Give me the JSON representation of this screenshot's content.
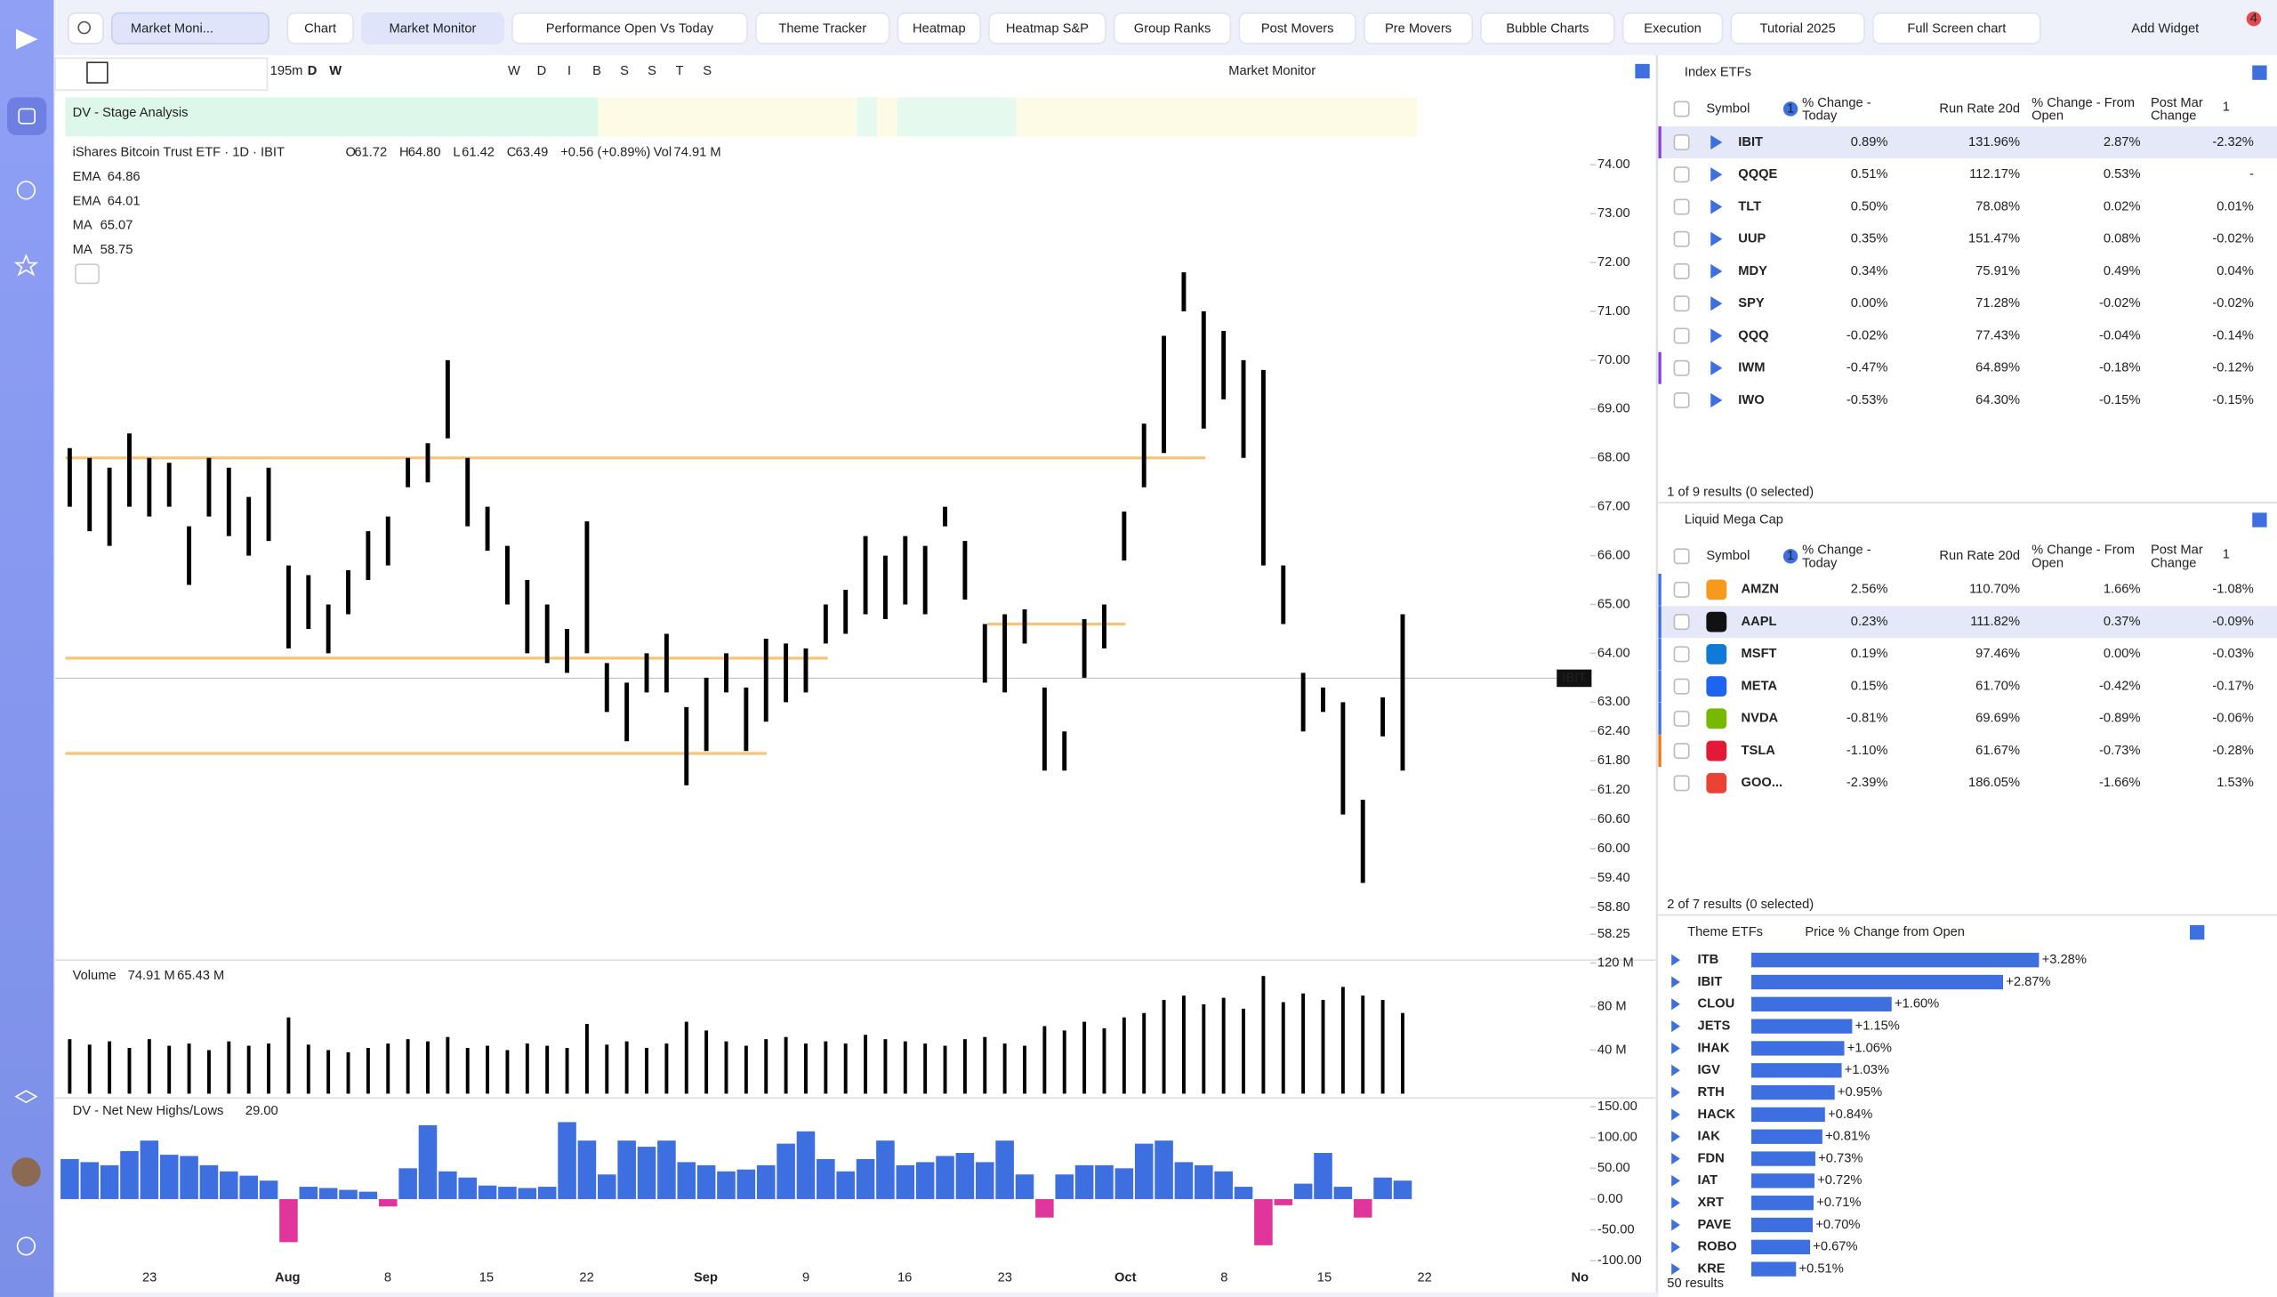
{
  "topbar": {
    "workspace": "Market Moni...",
    "tabs": [
      "Chart",
      "Market Monitor",
      "Performance Open Vs Today",
      "Theme Tracker",
      "Heatmap",
      "Heatmap S&P",
      "Group Ranks",
      "Post Movers",
      "Pre Movers",
      "Bubble Charts",
      "Execution",
      "Tutorial 2025",
      "Full Screen chart"
    ],
    "active_tab": 1,
    "add_widget": "Add Widget",
    "notifications": "4"
  },
  "chart_toolbar": {
    "interval": "195m",
    "period_buttons": [
      "D",
      "W"
    ],
    "tool_letters": [
      "W",
      "D",
      "I",
      "B",
      "S",
      "S",
      "T",
      "S"
    ],
    "layout_name": "Market Monitor"
  },
  "chart": {
    "indicator_strip": "DV - Stage Analysis",
    "title": "iShares Bitcoin Trust ETF · 1D · IBIT",
    "ohlc": [
      {
        "label": "O",
        "value": "61.72"
      },
      {
        "label": "H",
        "value": "64.80"
      },
      {
        "label": "L",
        "value": "61.42"
      },
      {
        "label": "C",
        "value": "63.49"
      }
    ],
    "change": "+0.56 (+0.89%)",
    "volume_label": "Vol",
    "volume_value": "74.91 M",
    "studies": [
      {
        "name": "EMA",
        "value": "64.86"
      },
      {
        "name": "EMA",
        "value": "64.01"
      },
      {
        "name": "MA",
        "value": "65.07"
      },
      {
        "name": "MA",
        "value": "58.75"
      }
    ],
    "last_label": "IBIT",
    "price": {
      "type": "ohlc-bar",
      "ylim": [
        57.9,
        74.4
      ],
      "yticks": [
        {
          "value": 74,
          "label": "74.00"
        },
        {
          "value": 73,
          "label": "73.00"
        },
        {
          "value": 72,
          "label": "72.00"
        },
        {
          "value": 71,
          "label": "71.00"
        },
        {
          "value": 70,
          "label": "70.00"
        },
        {
          "value": 69,
          "label": "69.00"
        },
        {
          "value": 68,
          "label": "68.00"
        },
        {
          "value": 67,
          "label": "67.00"
        },
        {
          "value": 66,
          "label": "66.00"
        },
        {
          "value": 65,
          "label": "65.00"
        },
        {
          "value": 64,
          "label": "64.00"
        },
        {
          "value": 63,
          "label": "63.00"
        },
        {
          "value": 62.4,
          "label": "62.40"
        },
        {
          "value": 61.8,
          "label": "61.80"
        },
        {
          "value": 61.2,
          "label": "61.20"
        },
        {
          "value": 60.6,
          "label": "60.60"
        },
        {
          "value": 60,
          "label": "60.00"
        },
        {
          "value": 59.4,
          "label": "59.40"
        },
        {
          "value": 58.8,
          "label": "58.80"
        },
        {
          "value": 58.25,
          "label": "58.25"
        }
      ],
      "high": [
        68.2,
        68.0,
        67.8,
        68.5,
        68.0,
        67.9,
        66.6,
        68.0,
        67.8,
        67.2,
        67.8,
        65.8,
        65.6,
        65.0,
        65.7,
        66.5,
        66.8,
        68.0,
        68.3,
        70.0,
        68.0,
        67.0,
        66.2,
        65.5,
        65.0,
        64.5,
        66.7,
        63.8,
        63.4,
        64.0,
        64.4,
        62.9,
        63.5,
        64.0,
        63.3,
        64.3,
        64.2,
        64.1,
        65.0,
        65.3,
        66.4,
        66.0,
        66.4,
        66.2,
        67.0,
        66.3,
        64.6,
        64.8,
        64.9,
        63.3,
        62.4,
        64.7,
        65.0,
        66.9,
        68.7,
        70.5,
        71.8,
        71.0,
        70.6,
        70.0,
        69.8,
        65.8,
        63.6,
        63.3,
        63.0,
        61.0,
        63.1,
        64.8
      ],
      "low": [
        67.0,
        66.5,
        66.2,
        67.0,
        66.8,
        67.0,
        65.4,
        66.8,
        66.4,
        66.0,
        66.3,
        64.1,
        64.5,
        64.0,
        64.8,
        65.5,
        65.8,
        67.4,
        67.5,
        68.4,
        66.6,
        66.1,
        65.0,
        64.0,
        63.8,
        63.6,
        64.0,
        62.8,
        62.2,
        63.2,
        63.2,
        61.3,
        62.0,
        63.2,
        62.0,
        62.6,
        63.0,
        63.2,
        64.2,
        64.4,
        64.8,
        64.7,
        65.0,
        64.8,
        66.6,
        65.1,
        63.4,
        63.2,
        64.2,
        61.6,
        61.6,
        63.5,
        64.1,
        65.9,
        67.4,
        68.1,
        71.0,
        68.6,
        69.2,
        68.0,
        65.8,
        64.6,
        62.4,
        62.8,
        60.7,
        59.3,
        62.3,
        61.6
      ],
      "levels": [
        68.0,
        63.9,
        61.95,
        64.6
      ],
      "level_color": "#f7c47a"
    },
    "volume": {
      "type": "bar",
      "title": "Volume",
      "value1": "74.91 M",
      "value2": "65.43 M",
      "ylim": [
        0,
        120
      ],
      "yticks": [
        {
          "value": 120,
          "label": "120 M"
        },
        {
          "value": 80,
          "label": "80 M"
        },
        {
          "value": 40,
          "label": "40 M"
        }
      ],
      "color": "#000000",
      "values": [
        50,
        45,
        48,
        42,
        50,
        44,
        46,
        40,
        48,
        44,
        46,
        70,
        45,
        40,
        38,
        42,
        46,
        50,
        48,
        52,
        42,
        44,
        40,
        46,
        44,
        42,
        64,
        45,
        48,
        42,
        46,
        66,
        58,
        48,
        44,
        50,
        52,
        46,
        48,
        46,
        54,
        50,
        48,
        46,
        44,
        50,
        52,
        46,
        44,
        62,
        58,
        66,
        60,
        70,
        74,
        86,
        90,
        82,
        88,
        78,
        108,
        84,
        92,
        86,
        98,
        90,
        86,
        74
      ]
    },
    "nnhl": {
      "type": "bar",
      "title": "DV - Net New Highs/Lows",
      "current": "29.00",
      "ylim": [
        -100,
        150
      ],
      "yticks": [
        {
          "value": 150,
          "label": "150.00"
        },
        {
          "value": 100,
          "label": "100.00"
        },
        {
          "value": 50,
          "label": "50.00"
        },
        {
          "value": 0,
          "label": "0.00"
        },
        {
          "value": -50,
          "label": "-50.00"
        },
        {
          "value": -100,
          "label": "-100.00"
        }
      ],
      "color": "#3d6fe0",
      "negative_color": "#e0359a",
      "values": [
        65,
        60,
        55,
        78,
        95,
        72,
        70,
        55,
        45,
        38,
        30,
        -70,
        20,
        18,
        15,
        12,
        -12,
        50,
        120,
        45,
        35,
        22,
        20,
        18,
        20,
        125,
        95,
        40,
        95,
        85,
        95,
        60,
        55,
        45,
        48,
        55,
        90,
        110,
        65,
        45,
        65,
        95,
        55,
        60,
        70,
        75,
        60,
        95,
        40,
        -30,
        40,
        55,
        55,
        50,
        90,
        95,
        60,
        55,
        45,
        20,
        -75,
        -10,
        25,
        75,
        20,
        -30,
        35,
        30
      ]
    },
    "x_labels": [
      "23",
      "Aug",
      "8",
      "15",
      "22",
      "Sep",
      "9",
      "16",
      "23",
      "Oct",
      "8",
      "15",
      "22",
      "No"
    ]
  },
  "index_etfs": {
    "title": "Index ETFs",
    "columns": {
      "symbol": "Symbol",
      "sort_badge": "1",
      "today": [
        "% Change -",
        "Today"
      ],
      "run_rate": "Run Rate 20d",
      "from_open": [
        "% Change - From",
        "Open"
      ],
      "post_mar": [
        "Post Mar",
        "Change"
      ],
      "post_badge": "1"
    },
    "rows": [
      [
        "IBIT",
        "0.89%",
        "131.96%",
        "2.87%",
        "-2.32%"
      ],
      [
        "QQQE",
        "0.51%",
        "112.17%",
        "0.53%",
        "-"
      ],
      [
        "TLT",
        "0.50%",
        "78.08%",
        "0.02%",
        "0.01%"
      ],
      [
        "UUP",
        "0.35%",
        "151.47%",
        "0.08%",
        "-0.02%"
      ],
      [
        "MDY",
        "0.34%",
        "75.91%",
        "0.49%",
        "0.04%"
      ],
      [
        "SPY",
        "0.00%",
        "71.28%",
        "-0.02%",
        "-0.02%"
      ],
      [
        "QQQ",
        "-0.02%",
        "77.43%",
        "-0.04%",
        "-0.14%"
      ],
      [
        "IWM",
        "-0.47%",
        "64.89%",
        "-0.18%",
        "-0.12%"
      ],
      [
        "IWO",
        "-0.53%",
        "64.30%",
        "-0.15%",
        "-0.15%"
      ]
    ],
    "footer": "1 of 9 results (0 selected)"
  },
  "mega_cap": {
    "title": "Liquid Mega Cap",
    "columns": {
      "symbol": "Symbol",
      "sort_badge": "1",
      "today": [
        "% Change -",
        "Today"
      ],
      "run_rate": "Run Rate 20d",
      "from_open": [
        "% Change - From",
        "Open"
      ],
      "post_mar": [
        "Post Mar",
        "Change"
      ],
      "post_badge": "1"
    },
    "rows": [
      [
        "AMZN",
        "2.56%",
        "110.70%",
        "1.66%",
        "-1.08%"
      ],
      [
        "AAPL",
        "0.23%",
        "111.82%",
        "0.37%",
        "-0.09%"
      ],
      [
        "MSFT",
        "0.19%",
        "97.46%",
        "0.00%",
        "-0.03%"
      ],
      [
        "META",
        "0.15%",
        "61.70%",
        "-0.42%",
        "-0.17%"
      ],
      [
        "NVDA",
        "-0.81%",
        "69.69%",
        "-0.89%",
        "-0.06%"
      ],
      [
        "TSLA",
        "-1.10%",
        "61.67%",
        "-0.73%",
        "-0.28%"
      ],
      [
        "GOO...",
        "-2.39%",
        "186.05%",
        "-1.66%",
        "1.53%"
      ]
    ],
    "footer": "2 of 7 results (0 selected)"
  },
  "theme_etfs": {
    "title": "Theme ETFs",
    "metric": "Price % Change from Open",
    "type": "bar",
    "color": "#3d6fe0",
    "categories": [
      "ITB",
      "IBIT",
      "CLOU",
      "JETS",
      "IHAK",
      "IGV",
      "RTH",
      "HACK",
      "IAK",
      "FDN",
      "IAT",
      "XRT",
      "PAVE",
      "ROBO",
      "KRE"
    ],
    "values": [
      3.28,
      2.87,
      1.6,
      1.15,
      1.06,
      1.03,
      0.95,
      0.84,
      0.81,
      0.73,
      0.72,
      0.71,
      0.7,
      0.67,
      0.51
    ],
    "value_labels": [
      "+3.28%",
      "+2.87%",
      "+1.60%",
      "+1.15%",
      "+1.06%",
      "+1.03%",
      "+0.95%",
      "+0.84%",
      "+0.81%",
      "+0.73%",
      "+0.72%",
      "+0.71%",
      "+0.70%",
      "+0.67%",
      "+0.51%"
    ],
    "footer": "50 results"
  }
}
